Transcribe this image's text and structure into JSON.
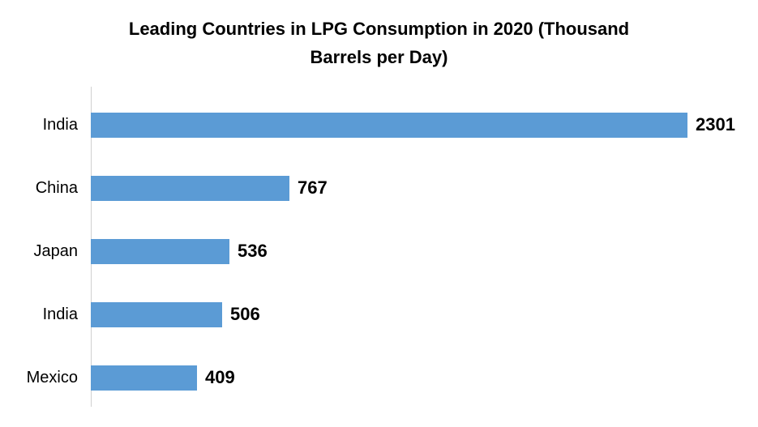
{
  "header": {
    "title_line1": "Leading Countries in LPG Consumption in 2020 (Thousand",
    "title_line2": "Barrels per Day)"
  },
  "chart_data": {
    "type": "bar",
    "orientation": "horizontal",
    "title": "Leading Countries in LPG Consumption in 2020 (Thousand Barrels per Day)",
    "categories": [
      "India",
      "China",
      "Japan",
      "India",
      "Mexico"
    ],
    "values": [
      2301,
      767,
      536,
      506,
      409
    ],
    "value_labels": [
      "2301",
      "767",
      "536",
      "506",
      "409"
    ],
    "xlabel": "",
    "ylabel": "",
    "xlim": [
      0,
      2301
    ],
    "grid": false,
    "legend": false,
    "data_labels_position": "outside-end",
    "bar_color": "#5B9BD5",
    "axis_line_color": "#D0D0D0",
    "text_color": "#000000",
    "background_color": "#FFFFFF"
  }
}
